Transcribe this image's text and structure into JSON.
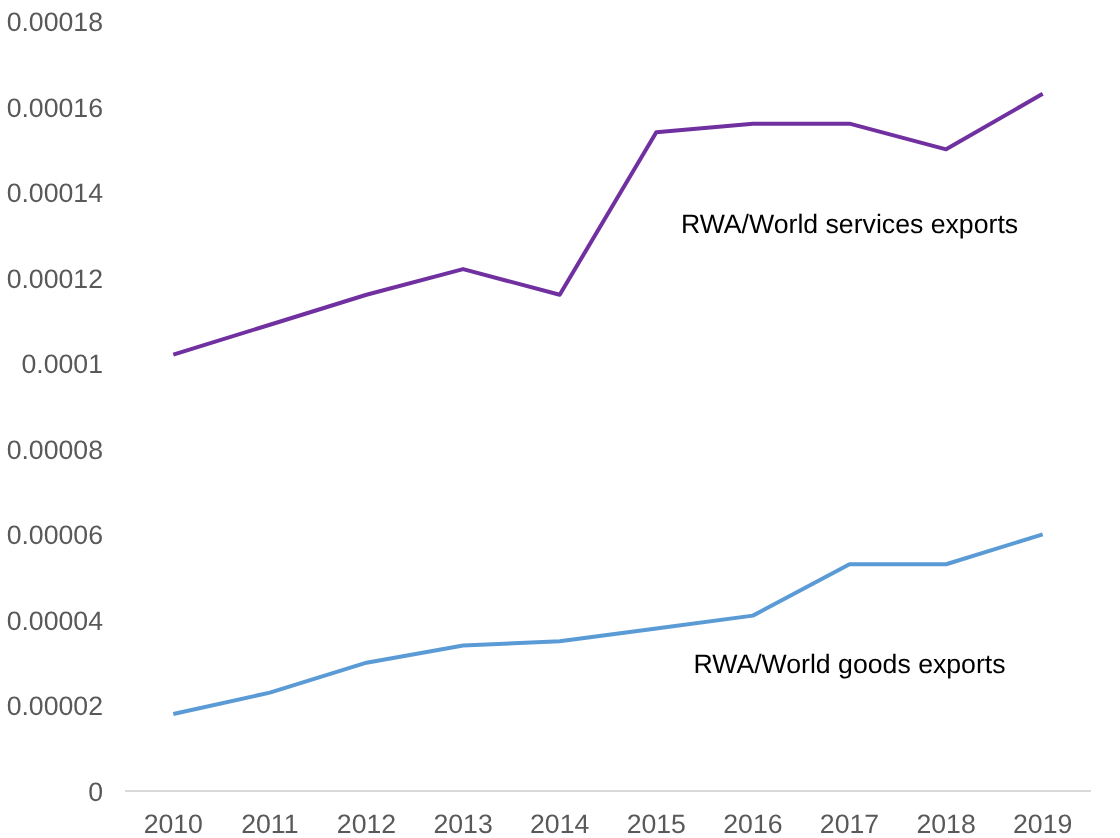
{
  "chart_data": {
    "type": "line",
    "categories": [
      "2010",
      "2011",
      "2012",
      "2013",
      "2014",
      "2015",
      "2016",
      "2017",
      "2018",
      "2019"
    ],
    "series": [
      {
        "name": "RWA/World services exports",
        "color": "#7030a0",
        "values": [
          0.000102,
          0.000109,
          0.000116,
          0.000122,
          0.000116,
          0.000154,
          0.000156,
          0.000156,
          0.00015,
          0.000163
        ]
      },
      {
        "name": "RWA/World goods exports",
        "color": "#5b9bd5",
        "values": [
          1.8e-05,
          2.3e-05,
          3e-05,
          3.4e-05,
          3.5e-05,
          3.8e-05,
          4.1e-05,
          5.3e-05,
          5.3e-05,
          6e-05
        ]
      }
    ],
    "ylim": [
      0,
      0.00018
    ],
    "yticks": [
      0,
      {
        "value": 2e-05,
        "label": "0.00002"
      },
      {
        "value": 4e-05,
        "label": "0.00004"
      },
      {
        "value": 6e-05,
        "label": "0.00006"
      },
      {
        "value": 8e-05,
        "label": "0.00008"
      },
      0.0001,
      0.00012,
      0.00014,
      0.00016,
      0.00018
    ],
    "grid": false,
    "marker": "none",
    "line_style": "solid"
  }
}
